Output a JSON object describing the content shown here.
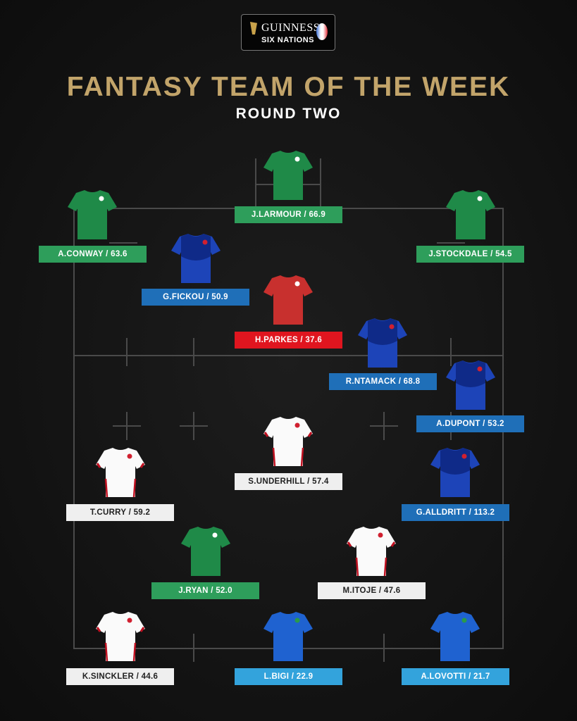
{
  "logo": {
    "brand": "GUINNESS",
    "sub": "SIX NATIONS"
  },
  "title": "FANTASY TEAM OF THE WEEK",
  "subtitle": "ROUND TWO",
  "colors": {
    "ireland": "#2e9e5b",
    "france": "#1f6fb8",
    "wales": "#e0151f",
    "england": "#efefef",
    "italy": "#33a3dc",
    "title_gold": "#c2a46a"
  },
  "players": [
    {
      "label": "J.LARMOUR / 66.9",
      "team": "ireland"
    },
    {
      "label": "A.CONWAY / 63.6",
      "team": "ireland"
    },
    {
      "label": "J.STOCKDALE / 54.5",
      "team": "ireland"
    },
    {
      "label": "G.FICKOU / 50.9",
      "team": "france"
    },
    {
      "label": "H.PARKES / 37.6",
      "team": "wales"
    },
    {
      "label": "R.NTAMACK / 68.8",
      "team": "france"
    },
    {
      "label": "A.DUPONT / 53.2",
      "team": "france"
    },
    {
      "label": "S.UNDERHILL / 57.4",
      "team": "england"
    },
    {
      "label": "T.CURRY / 59.2",
      "team": "england"
    },
    {
      "label": "G.ALLDRITT / 113.2",
      "team": "france"
    },
    {
      "label": "J.RYAN / 52.0",
      "team": "ireland"
    },
    {
      "label": "M.ITOJE / 47.6",
      "team": "england"
    },
    {
      "label": "K.SINCKLER / 44.6",
      "team": "england"
    },
    {
      "label": "L.BIGI / 22.9",
      "team": "italy"
    },
    {
      "label": "A.LOVOTTI / 21.7",
      "team": "italy"
    }
  ]
}
